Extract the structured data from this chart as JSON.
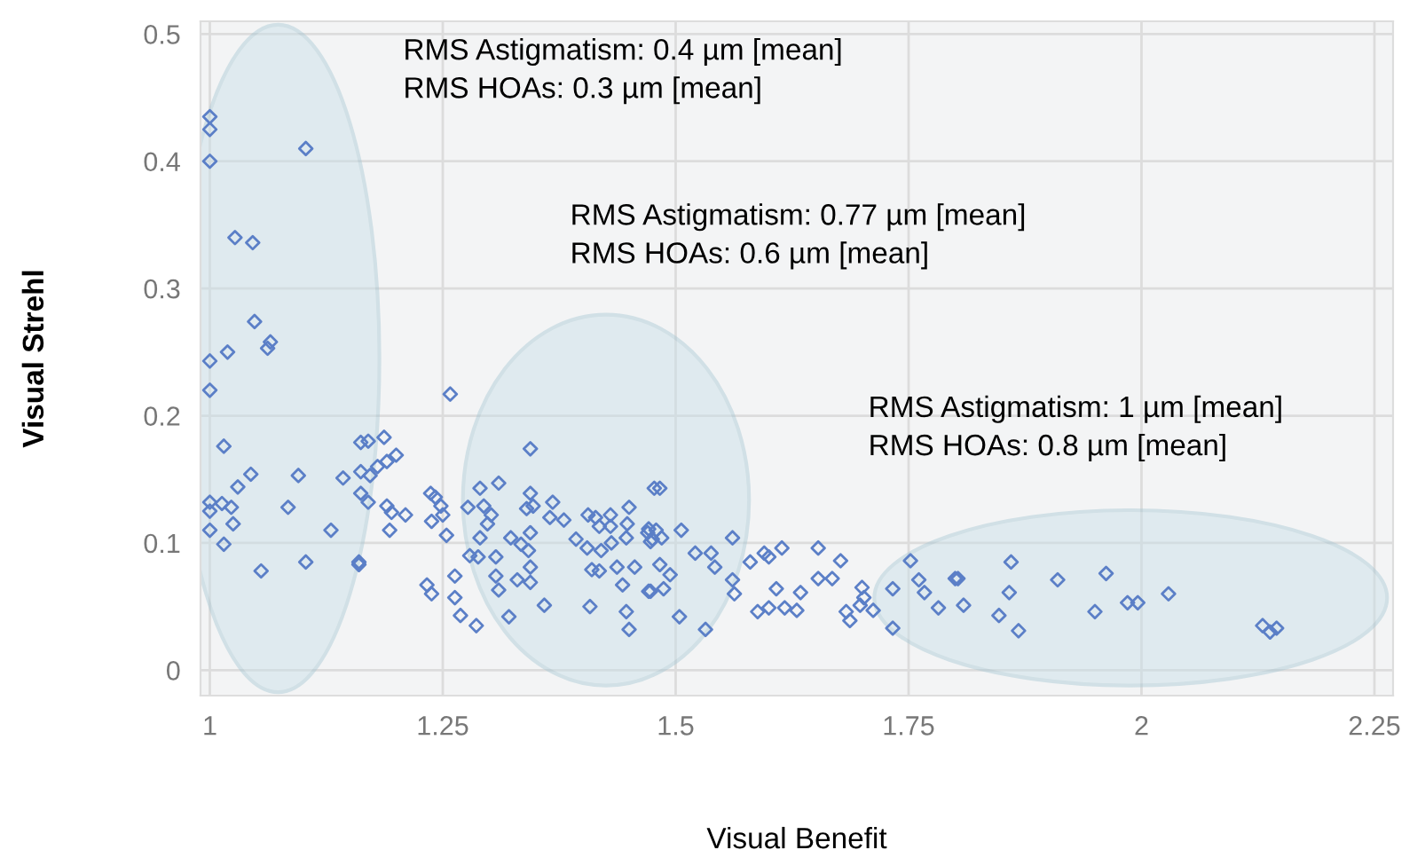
{
  "chart_data": {
    "type": "scatter",
    "xlabel": "Visual Benefit",
    "ylabel": "Visual Strehl",
    "xlim": [
      0.99,
      2.27
    ],
    "ylim": [
      -0.02,
      0.51
    ],
    "xticks": [
      1,
      1.25,
      1.5,
      1.75,
      2,
      2.25
    ],
    "yticks": [
      0,
      0.1,
      0.2,
      0.3,
      0.4,
      0.5
    ],
    "grid": true,
    "marker": "diamond",
    "legend": false,
    "annotations": [
      "RMS Astigmatism: 0.4 µm [mean]\nRMS HOAs: 0.3 µm [mean]",
      "RMS Astigmatism: 0.77 µm [mean]\nRMS HOAs: 0.6 µm [mean]",
      "RMS Astigmatism: 1 µm [mean]\nRMS HOAs: 0.8 µm [mean]"
    ],
    "series": [
      {
        "color": "#5b7fc7",
        "x": [
          1.0,
          1.0,
          1.0,
          1.103,
          1.027,
          1.046,
          1.048,
          1.065,
          1.062,
          1.019,
          1.0,
          1.0,
          1.015,
          1.162,
          1.17,
          1.187,
          1.2,
          1.044,
          1.095,
          1.03,
          1.143,
          1.162,
          1.172,
          1.18,
          1.19,
          1.0,
          1.013,
          1.023,
          1.0,
          1.084,
          1.162,
          1.17,
          1.19,
          1.195,
          1.025,
          1.0,
          1.13,
          1.21,
          1.193,
          1.015,
          1.103,
          1.16,
          1.055,
          1.16,
          1.258,
          1.344,
          1.237,
          1.242,
          1.248,
          1.238,
          1.25,
          1.254,
          1.29,
          1.31,
          1.277,
          1.294,
          1.302,
          1.298,
          1.29,
          1.279,
          1.288,
          1.307,
          1.323,
          1.334,
          1.342,
          1.344,
          1.347,
          1.34,
          1.344,
          1.368,
          1.365,
          1.38,
          1.393,
          1.406,
          1.414,
          1.418,
          1.43,
          1.43,
          1.45,
          1.448,
          1.447,
          1.431,
          1.42,
          1.405,
          1.471,
          1.475,
          1.477,
          1.344,
          1.33,
          1.344,
          1.307,
          1.31,
          1.263,
          1.233,
          1.238,
          1.263,
          1.269,
          1.286,
          1.321,
          1.359,
          1.41,
          1.418,
          1.437,
          1.456,
          1.443,
          1.408,
          1.447,
          1.471,
          1.45,
          1.483,
          1.47,
          1.479,
          1.485,
          1.473,
          1.506,
          1.521,
          1.538,
          1.561,
          1.542,
          1.483,
          1.494,
          1.487,
          1.473,
          1.561,
          1.563,
          1.58,
          1.595,
          1.6,
          1.614,
          1.608,
          1.634,
          1.6,
          1.617,
          1.63,
          1.588,
          1.653,
          1.677,
          1.653,
          1.668,
          1.7,
          1.702,
          1.698,
          1.712,
          1.683,
          1.687,
          1.733,
          1.752,
          1.761,
          1.767,
          1.782,
          1.8,
          1.504,
          1.532,
          1.733,
          1.86,
          1.803,
          1.858,
          1.809,
          1.847,
          1.868,
          1.91,
          1.962,
          1.95,
          1.985,
          1.996,
          2.029,
          2.13,
          2.138,
          2.145
        ],
        "values": [
          0.435,
          0.425,
          0.4,
          0.41,
          0.34,
          0.336,
          0.274,
          0.258,
          0.253,
          0.25,
          0.243,
          0.22,
          0.176,
          0.179,
          0.18,
          0.183,
          0.169,
          0.154,
          0.153,
          0.144,
          0.151,
          0.156,
          0.153,
          0.16,
          0.164,
          0.132,
          0.131,
          0.128,
          0.125,
          0.128,
          0.139,
          0.132,
          0.129,
          0.124,
          0.115,
          0.11,
          0.11,
          0.122,
          0.11,
          0.099,
          0.085,
          0.085,
          0.078,
          0.083,
          0.217,
          0.174,
          0.139,
          0.136,
          0.129,
          0.117,
          0.122,
          0.106,
          0.143,
          0.147,
          0.128,
          0.129,
          0.122,
          0.115,
          0.104,
          0.09,
          0.089,
          0.089,
          0.104,
          0.099,
          0.094,
          0.139,
          0.129,
          0.127,
          0.108,
          0.132,
          0.12,
          0.118,
          0.103,
          0.122,
          0.12,
          0.113,
          0.122,
          0.113,
          0.128,
          0.115,
          0.104,
          0.1,
          0.094,
          0.096,
          0.111,
          0.103,
          0.143,
          0.081,
          0.071,
          0.069,
          0.074,
          0.063,
          0.074,
          0.067,
          0.06,
          0.057,
          0.043,
          0.035,
          0.042,
          0.051,
          0.079,
          0.078,
          0.081,
          0.081,
          0.067,
          0.05,
          0.046,
          0.062,
          0.032,
          0.143,
          0.108,
          0.11,
          0.104,
          0.101,
          0.11,
          0.092,
          0.092,
          0.104,
          0.081,
          0.083,
          0.075,
          0.064,
          0.062,
          0.071,
          0.06,
          0.085,
          0.092,
          0.089,
          0.096,
          0.064,
          0.061,
          0.049,
          0.049,
          0.047,
          0.046,
          0.096,
          0.086,
          0.072,
          0.072,
          0.065,
          0.057,
          0.051,
          0.047,
          0.046,
          0.039,
          0.064,
          0.086,
          0.071,
          0.061,
          0.049,
          0.072,
          0.042,
          0.032,
          0.033,
          0.085,
          0.072,
          0.061,
          0.051,
          0.043,
          0.031,
          0.071,
          0.076,
          0.046,
          0.053,
          0.053,
          0.06,
          0.035,
          0.03,
          0.033
        ]
      }
    ]
  }
}
